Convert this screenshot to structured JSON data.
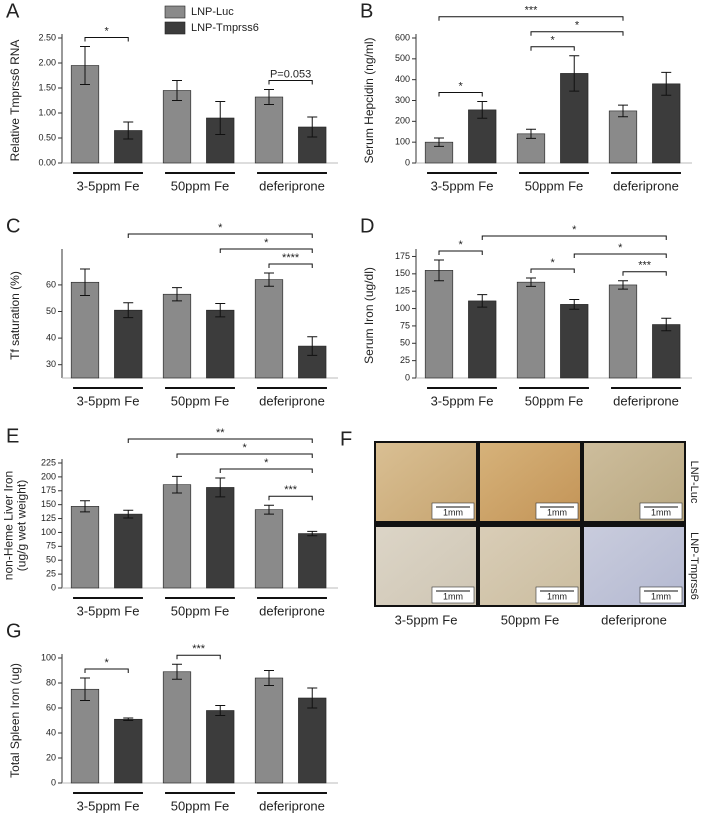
{
  "chart_data": [
    {
      "type": "bar",
      "panel": "A",
      "y_label": [
        "Relative Tmprss6 RNA"
      ],
      "categories": [
        "3-5ppm Fe",
        "50ppm Fe",
        "deferiprone"
      ],
      "series": [
        {
          "name": "LNP-Luc",
          "color": "#8a8a8a",
          "values": [
            1.95,
            1.45,
            1.32
          ],
          "errors": [
            0.38,
            0.2,
            0.15
          ]
        },
        {
          "name": "LNP-Tmprss6",
          "color": "#3c3c3c",
          "values": [
            0.65,
            0.9,
            0.72
          ],
          "errors": [
            0.17,
            0.33,
            0.2
          ]
        }
      ],
      "ylim": [
        0,
        2.5
      ],
      "yticks": [
        {
          "value": 0,
          "label": "0.00"
        },
        {
          "value": 0.5,
          "label": "0.50"
        },
        {
          "value": 1,
          "label": "1.00"
        },
        {
          "value": 1.5,
          "label": "1.50"
        },
        {
          "value": 2,
          "label": "2.00"
        },
        {
          "value": 2.5,
          "label": "2.50"
        }
      ],
      "legend": "top",
      "brackets": [
        {
          "label": "*",
          "from": [
            0,
            0
          ],
          "to": [
            1,
            0
          ]
        },
        {
          "label": "P=0.053",
          "from": [
            0,
            2
          ],
          "to": [
            1,
            2
          ]
        }
      ]
    },
    {
      "type": "bar",
      "panel": "B",
      "y_label": [
        "Serum Hepcidin (ng/ml)"
      ],
      "categories": [
        "3-5ppm Fe",
        "50ppm Fe",
        "deferiprone"
      ],
      "series": [
        {
          "name": "LNP-Luc",
          "color": "#8a8a8a",
          "values": [
            100,
            140,
            250
          ],
          "errors": [
            20,
            22,
            28
          ]
        },
        {
          "name": "LNP-Tmprss6",
          "color": "#3c3c3c",
          "values": [
            255,
            430,
            380
          ],
          "errors": [
            40,
            85,
            55
          ]
        }
      ],
      "ylim": [
        0,
        600
      ],
      "yticks": [
        0,
        100,
        200,
        300,
        400,
        500,
        600
      ],
      "brackets": [
        {
          "label": "*",
          "from": [
            0,
            0
          ],
          "to": [
            1,
            0
          ]
        },
        {
          "label": "*",
          "from": [
            0,
            1
          ],
          "to": [
            1,
            1
          ]
        },
        {
          "label": "*",
          "from": [
            0,
            1
          ],
          "to": [
            0,
            2
          ]
        },
        {
          "label": "***",
          "from": [
            0,
            0
          ],
          "to": [
            0,
            2
          ]
        }
      ]
    },
    {
      "type": "bar",
      "panel": "C",
      "y_label": [
        "Tf saturation (%)"
      ],
      "categories": [
        "3-5ppm Fe",
        "50ppm Fe",
        "deferiprone"
      ],
      "series": [
        {
          "name": "LNP-Luc",
          "color": "#8a8a8a",
          "values": [
            61,
            56.5,
            62
          ],
          "errors": [
            5,
            2.5,
            2.5
          ]
        },
        {
          "name": "LNP-Tmprss6",
          "color": "#3c3c3c",
          "values": [
            50.5,
            50.5,
            37
          ],
          "errors": [
            2.8,
            2.5,
            3.5
          ]
        }
      ],
      "ylim": [
        25,
        72
      ],
      "yticks": [
        30,
        40,
        50,
        60
      ],
      "brackets": [
        {
          "label": "****",
          "from": [
            0,
            2
          ],
          "to": [
            1,
            2
          ]
        },
        {
          "label": "*",
          "from": [
            1,
            1
          ],
          "to": [
            1,
            2
          ]
        },
        {
          "label": "*",
          "from": [
            1,
            0
          ],
          "to": [
            1,
            2
          ]
        }
      ]
    },
    {
      "type": "bar",
      "panel": "D",
      "y_label": [
        "Serum Iron (ug/dl)"
      ],
      "categories": [
        "3-5ppm Fe",
        "50ppm Fe",
        "deferiprone"
      ],
      "series": [
        {
          "name": "LNP-Luc",
          "color": "#8a8a8a",
          "values": [
            155,
            138,
            134
          ],
          "errors": [
            15,
            6,
            6
          ]
        },
        {
          "name": "LNP-Tmprss6",
          "color": "#3c3c3c",
          "values": [
            111,
            106,
            77
          ],
          "errors": [
            9,
            7,
            9
          ]
        }
      ],
      "ylim": [
        0,
        180
      ],
      "yticks": [
        0,
        25,
        50,
        75,
        100,
        125,
        150,
        175
      ],
      "brackets": [
        {
          "label": "*",
          "from": [
            0,
            0
          ],
          "to": [
            1,
            0
          ]
        },
        {
          "label": "*",
          "from": [
            0,
            1
          ],
          "to": [
            1,
            1
          ]
        },
        {
          "label": "***",
          "from": [
            0,
            2
          ],
          "to": [
            1,
            2
          ]
        },
        {
          "label": "*",
          "from": [
            1,
            1
          ],
          "to": [
            1,
            2
          ]
        },
        {
          "label": "*",
          "from": [
            1,
            0
          ],
          "to": [
            1,
            2
          ]
        }
      ]
    },
    {
      "type": "bar",
      "panel": "E",
      "y_label": [
        "non-Heme Liver Iron",
        "(ug/g wet weight)"
      ],
      "categories": [
        "3-5ppm Fe",
        "50ppm Fe",
        "deferiprone"
      ],
      "series": [
        {
          "name": "LNP-Luc",
          "color": "#8a8a8a",
          "values": [
            147,
            186,
            141
          ],
          "errors": [
            10,
            15,
            8
          ]
        },
        {
          "name": "LNP-Tmprss6",
          "color": "#3c3c3c",
          "values": [
            133,
            181,
            98
          ],
          "errors": [
            7,
            17,
            4
          ]
        }
      ],
      "ylim": [
        0,
        225
      ],
      "yticks": [
        0,
        25,
        50,
        75,
        100,
        125,
        150,
        175,
        200,
        225
      ],
      "brackets": [
        {
          "label": "***",
          "from": [
            0,
            2
          ],
          "to": [
            1,
            2
          ]
        },
        {
          "label": "*",
          "from": [
            1,
            1
          ],
          "to": [
            1,
            2
          ]
        },
        {
          "label": "*",
          "from": [
            0,
            1
          ],
          "to": [
            1,
            2
          ]
        },
        {
          "label": "**",
          "from": [
            1,
            0
          ],
          "to": [
            1,
            2
          ]
        }
      ]
    },
    {
      "type": "bar",
      "panel": "G",
      "y_label": [
        "Total Spleen Iron (ug)"
      ],
      "categories": [
        "3-5ppm Fe",
        "50ppm Fe",
        "deferiprone"
      ],
      "series": [
        {
          "name": "LNP-Luc",
          "color": "#8a8a8a",
          "values": [
            75,
            89,
            84
          ],
          "errors": [
            9,
            6,
            6
          ]
        },
        {
          "name": "LNP-Tmprss6",
          "color": "#3c3c3c",
          "values": [
            51,
            58,
            68
          ],
          "errors": [
            1,
            4,
            8
          ]
        }
      ],
      "ylim": [
        0,
        100
      ],
      "yticks": [
        0,
        20,
        40,
        60,
        80,
        100
      ],
      "brackets": [
        {
          "label": "*",
          "from": [
            0,
            0
          ],
          "to": [
            1,
            0
          ]
        },
        {
          "label": "***",
          "from": [
            0,
            1
          ],
          "to": [
            1,
            1
          ]
        }
      ]
    }
  ],
  "panel_f": {
    "panel": "F",
    "rows": [
      "LNP-Luc",
      "LNP-Tmprss6"
    ],
    "columns": [
      "3-5ppm Fe",
      "50ppm Fe",
      "deferiprone"
    ],
    "scale_bar": "1mm"
  }
}
